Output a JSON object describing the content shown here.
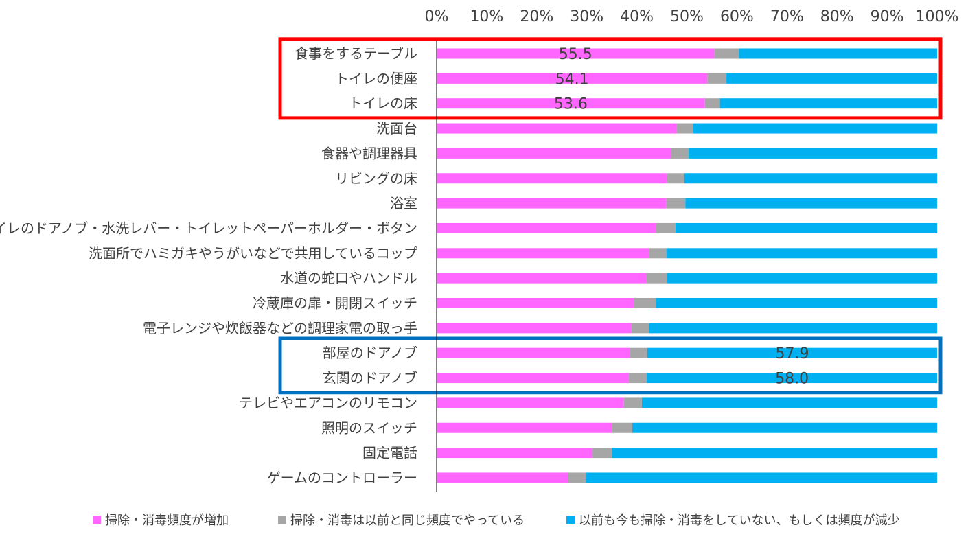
{
  "chart_data": {
    "type": "bar",
    "orientation": "horizontal",
    "stacked": "percent",
    "x_ticks": [
      "0%",
      "10%",
      "20%",
      "30%",
      "40%",
      "50%",
      "60%",
      "70%",
      "80%",
      "90%",
      "100%"
    ],
    "xlim": [
      0,
      100
    ],
    "categories": [
      "食事をするテーブル",
      "トイレの便座",
      "トイレの床",
      "洗面台",
      "食器や調理器具",
      "リビングの床",
      "浴室",
      "トイレのドアノブ・水洗レバー・トイレットペーパーホルダー・ボタン",
      "洗面所でハミガキやうがいなどで共用しているコップ",
      "水道の蛇口やハンドル",
      "冷蔵庫の扉・開閉スイッチ",
      "電子レンジや炊飯器などの調理家電の取っ手",
      "部屋のドアノブ",
      "玄関のドアノブ",
      "テレビやエアコンのリモコン",
      "照明のスイッチ",
      "固定電話",
      "ゲームのコントローラー"
    ],
    "series": [
      {
        "name": "掃除・消毒頻度が増加",
        "color": "#FF66FF",
        "values": [
          55.5,
          54.1,
          53.6,
          48.0,
          46.8,
          46.0,
          45.9,
          43.9,
          42.4,
          41.9,
          39.5,
          38.9,
          38.6,
          38.4,
          37.4,
          35.1,
          31.1,
          26.3
        ]
      },
      {
        "name": "掃除・消毒は以前と同じ頻度でやっている",
        "color": "#A6A6A6",
        "values": [
          4.9,
          3.8,
          3.0,
          3.3,
          3.5,
          3.5,
          3.8,
          3.8,
          3.5,
          4.1,
          4.3,
          3.6,
          3.5,
          3.6,
          3.6,
          4.0,
          4.0,
          3.6
        ]
      },
      {
        "name": "以前も今も掃除・消毒をしていない、もしくは頻度が減少",
        "color": "#00B0F0",
        "values": [
          39.6,
          42.1,
          43.4,
          48.7,
          49.7,
          50.5,
          50.3,
          52.3,
          54.1,
          54.0,
          56.2,
          57.5,
          57.9,
          58.0,
          59.0,
          60.9,
          64.9,
          70.1
        ]
      }
    ],
    "data_labels": [
      {
        "category_index": 0,
        "series_index": 0,
        "text": "55.5"
      },
      {
        "category_index": 1,
        "series_index": 0,
        "text": "54.1"
      },
      {
        "category_index": 2,
        "series_index": 0,
        "text": "53.6"
      },
      {
        "category_index": 12,
        "series_index": 2,
        "text": "57.9"
      },
      {
        "category_index": 13,
        "series_index": 2,
        "text": "58.0"
      }
    ],
    "highlight_boxes": [
      {
        "from_index": 0,
        "to_index": 2,
        "color": "#FF0000"
      },
      {
        "from_index": 12,
        "to_index": 13,
        "color": "#0070C0"
      }
    ],
    "legend_position": "bottom",
    "grid": false
  }
}
